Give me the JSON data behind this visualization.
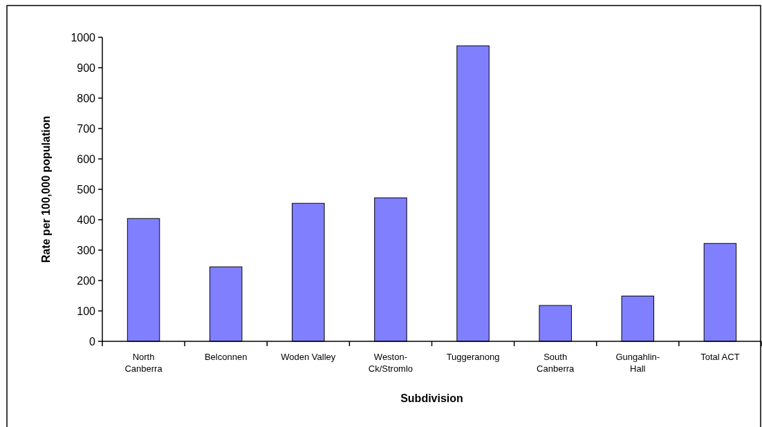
{
  "chart_data": {
    "type": "bar",
    "xlabel": "Subdivision",
    "ylabel": "Rate per 100,000 population",
    "categories": [
      "North Canberra",
      "Belconnen",
      "Woden Valley",
      "Weston-Ck/Stromlo",
      "Tuggeranong",
      "South Canberra",
      "Gungahlin-Hall",
      "Total ACT"
    ],
    "values": [
      404,
      245,
      454,
      472,
      972,
      118,
      149,
      322
    ],
    "color": "#8080ff",
    "ylim": [
      0,
      1000
    ],
    "yticks": [
      0,
      100,
      200,
      300,
      400,
      500,
      600,
      700,
      800,
      900,
      1000
    ],
    "grid": false
  }
}
